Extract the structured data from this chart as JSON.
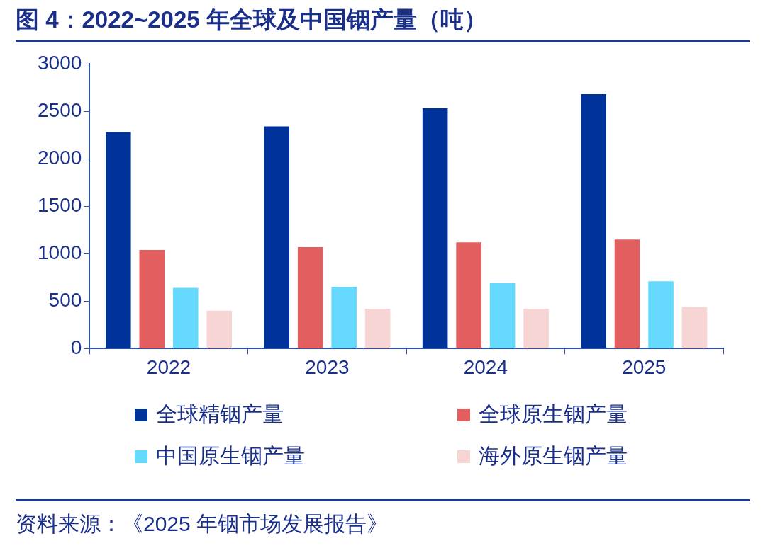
{
  "chart_data": {
    "type": "bar",
    "title": "图 4：2022~2025 年全球及中国铟产量（吨）",
    "categories": [
      "2022",
      "2023",
      "2024",
      "2025"
    ],
    "series": [
      {
        "name": "全球精铟产量",
        "color": "#003399",
        "values": [
          2280,
          2340,
          2530,
          2680
        ]
      },
      {
        "name": "全球原生铟产量",
        "color": "#e35f5f",
        "values": [
          1040,
          1070,
          1120,
          1150
        ]
      },
      {
        "name": "中国原生铟产量",
        "color": "#66d9ff",
        "values": [
          640,
          650,
          690,
          710
        ]
      },
      {
        "name": "海外原生铟产量",
        "color": "#f8d5d5",
        "values": [
          400,
          420,
          420,
          440
        ]
      }
    ],
    "ylim": [
      0,
      3000
    ],
    "yticks": [
      0,
      500,
      1000,
      1500,
      2000,
      2500,
      3000
    ],
    "grid": false,
    "legend": "bottom",
    "annotations": [
      "资料来源：《2025 年铟市场发展报告》"
    ]
  }
}
